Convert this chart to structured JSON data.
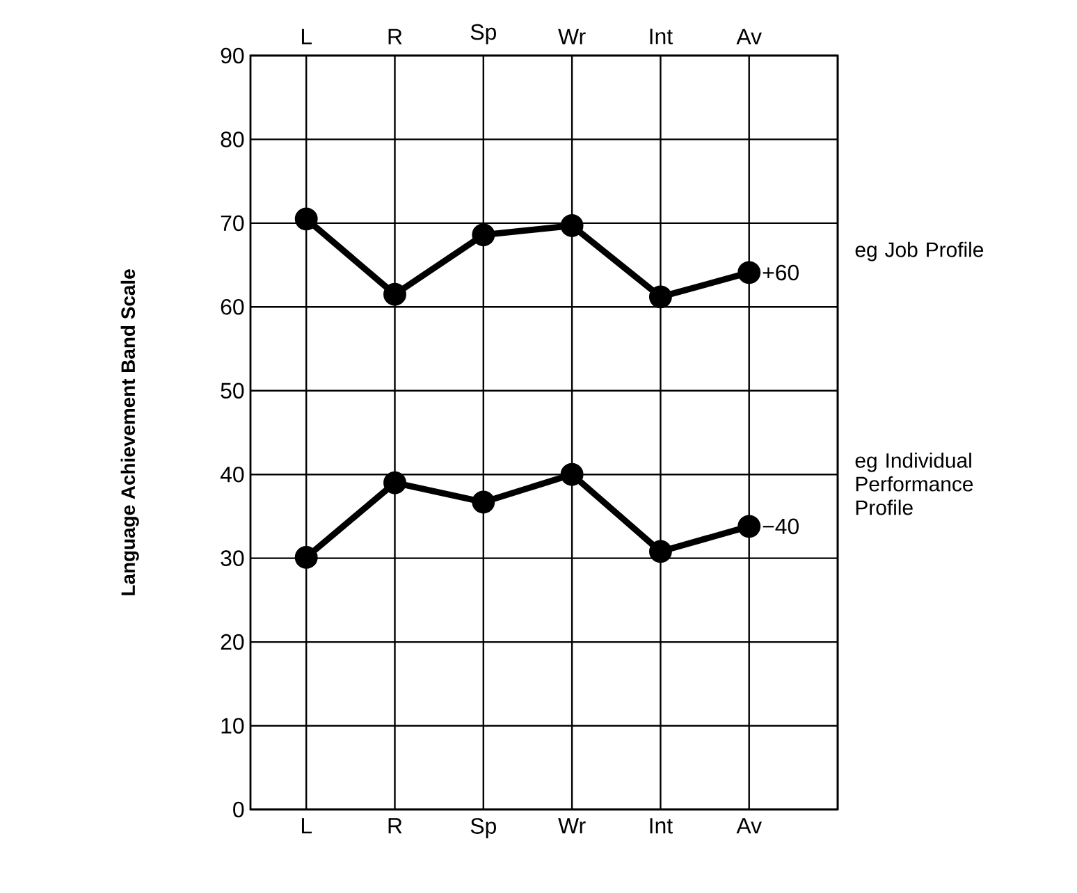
{
  "chart_data": {
    "type": "line",
    "ylabel": "Language Achievement Band Scale",
    "categories": [
      "L",
      "R",
      "Sp",
      "Wr",
      "Int",
      "Av"
    ],
    "series": [
      {
        "name": "eg Job Profile",
        "color": "#000000",
        "values": [
          70.5,
          61.5,
          68.6,
          69.7,
          61.2,
          64.1
        ]
      },
      {
        "name": "eg Individual Performance Profile",
        "color": "#000000",
        "values": [
          30.1,
          39,
          36.7,
          40,
          30.8,
          33.8
        ]
      }
    ],
    "ylim": [
      0,
      90
    ],
    "yticks": [
      0,
      10,
      20,
      30,
      40,
      50,
      60,
      70,
      80,
      90
    ],
    "grid": true,
    "marker": "circle",
    "line_style": "solid",
    "annotations": [
      {
        "text": "+60",
        "x": "Av",
        "y": 64.1
      },
      {
        "text": "−40",
        "x": "Av",
        "y": 33.8
      }
    ]
  }
}
